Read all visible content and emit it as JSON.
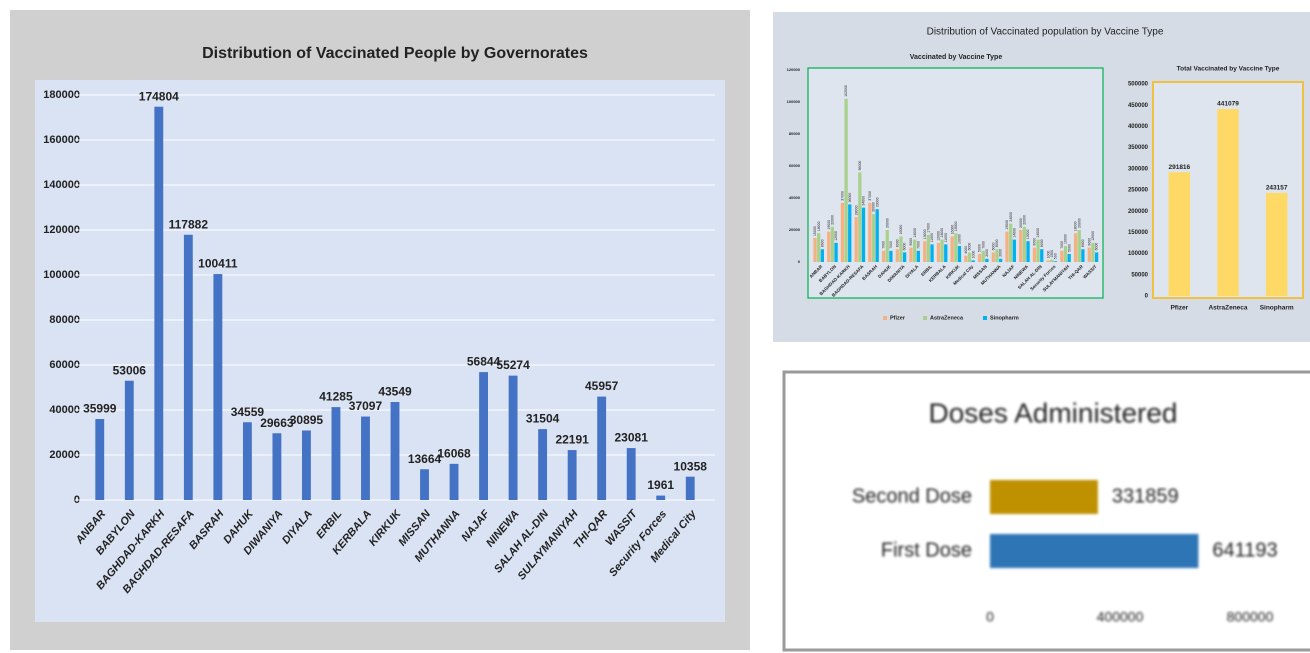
{
  "panel_title": "Distribution of Vaccinated population by Vaccine Type",
  "chart_data": [
    {
      "type": "bar",
      "title": "Distribution of Vaccinated People by Governorates",
      "categories": [
        "ANBAR",
        "BABYLON",
        "BAGHDAD-KARKH",
        "BAGHDAD-RESAFA",
        "BASRAH",
        "DAHUK",
        "DIWANIYA",
        "DIYALA",
        "ERBIL",
        "KERBALA",
        "KIRKUK",
        "MISSAN",
        "MUTHANNA",
        "NAJAF",
        "NINEWA",
        "SALAH AL-DIN",
        "SULAYMANIYAH",
        "THI-QAR",
        "WASSIT",
        "Security Forces",
        "Medical City"
      ],
      "values": [
        35999,
        53006,
        174804,
        117882,
        100411,
        34559,
        29663,
        30895,
        41285,
        37097,
        43549,
        13664,
        16068,
        56844,
        55274,
        31504,
        22191,
        45957,
        23081,
        1961,
        10358
      ],
      "color": "#4472c4",
      "ylim": [
        0,
        180000
      ],
      "yticks": [
        0,
        20000,
        40000,
        60000,
        80000,
        100000,
        120000,
        140000,
        160000,
        180000
      ],
      "grid": true
    },
    {
      "type": "grouped-bar",
      "title": "Vaccinated by Vaccine Type",
      "categories": [
        "ANBAR",
        "BABYLON",
        "BAGHDAD-KARKH",
        "BAGHDAD-RESAFA",
        "BASRAH",
        "DAHUK",
        "DIWANIYA",
        "DIYALA",
        "ERBIL",
        "KERBALA",
        "KIRKUK",
        "Medical City",
        "MISSAN",
        "MUTHANNA",
        "NAJAF",
        "NINEWA",
        "SALAH AL-DIN",
        "Security Forces",
        "SULAYMANIYAH",
        "THI-QAR",
        "WASSIT"
      ],
      "series": [
        {
          "name": "Pfizer",
          "color": "#f4b183",
          "values": [
            15000,
            19000,
            37000,
            28000,
            37000,
            7000,
            8000,
            9000,
            13000,
            12000,
            16000,
            4000,
            5000,
            6000,
            19000,
            20000,
            9000,
            1000,
            7000,
            18000,
            9000
          ]
        },
        {
          "name": "AstraZeneca",
          "color": "#a9d18e",
          "values": [
            18000,
            22000,
            102000,
            56000,
            30000,
            20000,
            16000,
            14000,
            17000,
            14000,
            18000,
            6000,
            7000,
            8000,
            24000,
            22000,
            14000,
            1500,
            10000,
            20000,
            12000
          ]
        },
        {
          "name": "Sinopharm",
          "color": "#00b0f0",
          "values": [
            8000,
            12000,
            36000,
            34000,
            33000,
            7000,
            6000,
            7000,
            11000,
            11000,
            10000,
            1000,
            2000,
            2000,
            14000,
            13000,
            8000,
            500,
            5000,
            8000,
            6000
          ]
        }
      ],
      "ylim": [
        0,
        120000
      ],
      "yticks": [
        0,
        20000,
        40000,
        60000,
        80000,
        100000,
        120000
      ],
      "legend": "bottom"
    },
    {
      "type": "bar",
      "title": "Total Vaccinated by Vaccine Type",
      "categories": [
        "Pfizer",
        "AstraZeneca",
        "Sinopharm"
      ],
      "values": [
        291816,
        441079,
        243157
      ],
      "color": "#ffd966",
      "ylim": [
        0,
        500000
      ],
      "yticks": [
        0,
        50000,
        100000,
        150000,
        200000,
        250000,
        300000,
        350000,
        400000,
        450000,
        500000
      ]
    },
    {
      "type": "barh",
      "title": "Doses Administered",
      "categories": [
        "Second Dose",
        "First Dose"
      ],
      "values": [
        331859,
        641193
      ],
      "colors": [
        "#bf9000",
        "#2e75b6"
      ],
      "xlim": [
        0,
        800000
      ],
      "xticks": [
        0,
        400000,
        800000
      ]
    }
  ]
}
